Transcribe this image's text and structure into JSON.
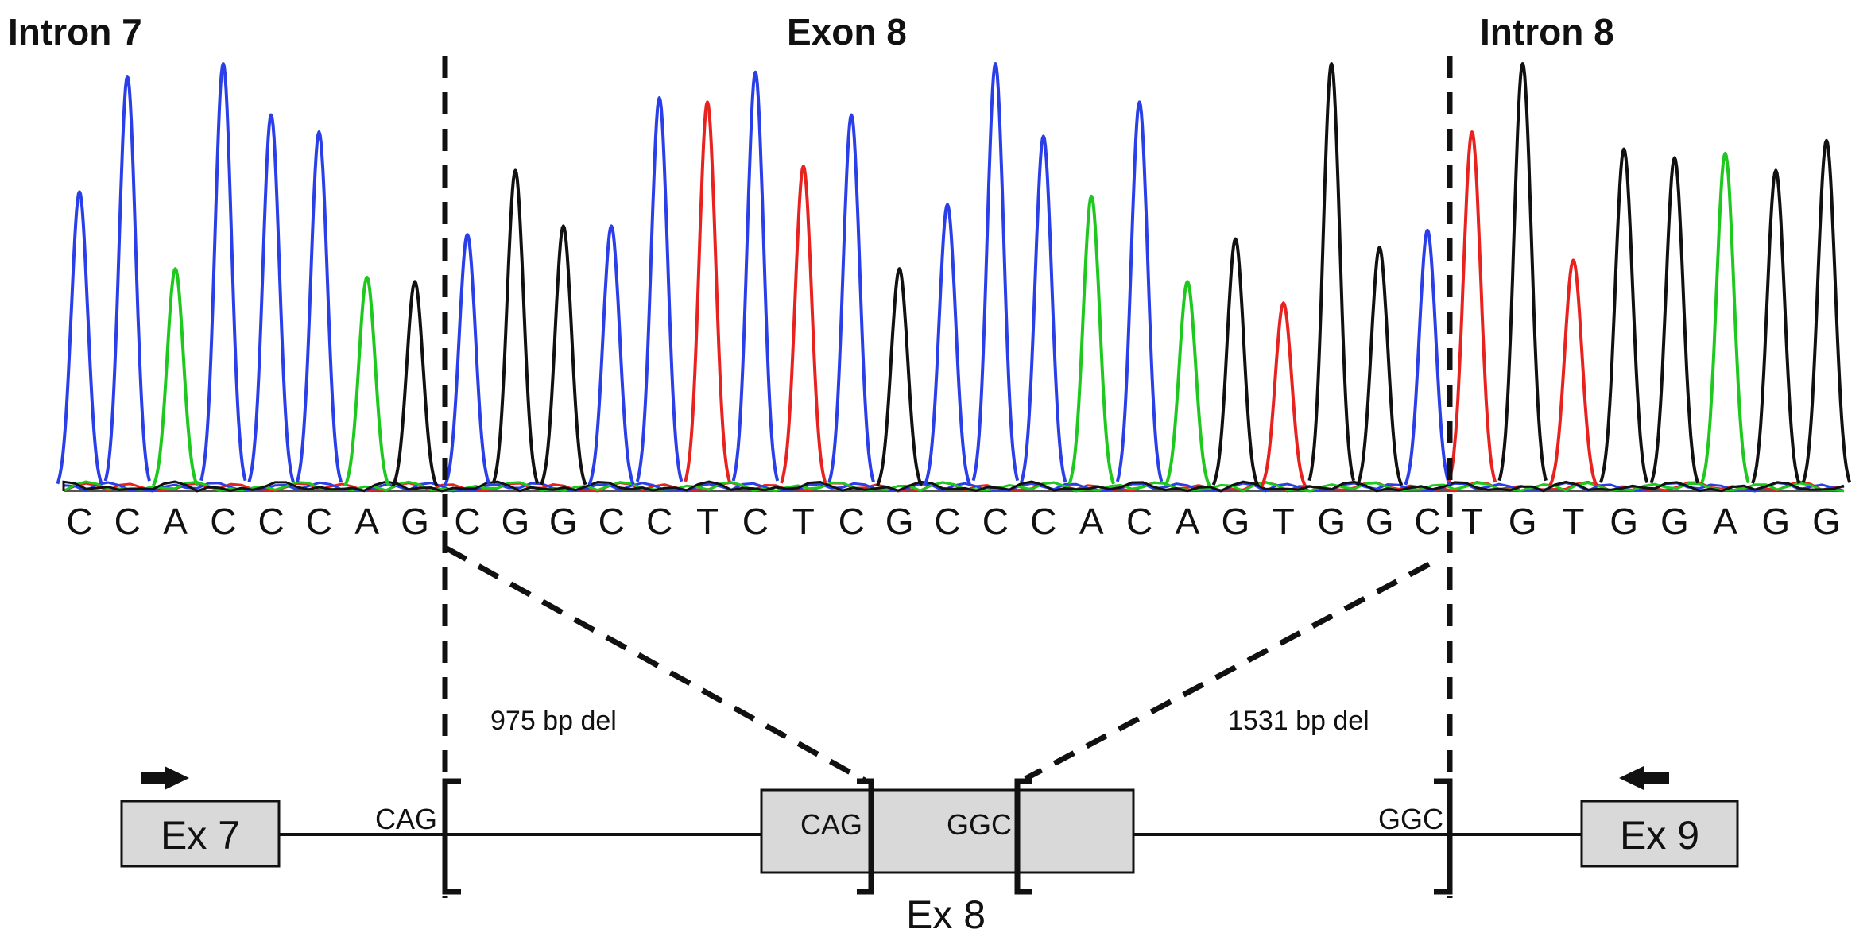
{
  "regions": {
    "intron7": "Intron 7",
    "exon8": "Exon 8",
    "intron8": "Intron 8"
  },
  "colors": {
    "A": "#1ec81e",
    "C": "#2a3fe8",
    "G": "#111111",
    "T": "#e8221e",
    "exon_fill": "#d9d9d9",
    "line": "#111111"
  },
  "sequence": [
    {
      "base": "C",
      "height": 0.7
    },
    {
      "base": "C",
      "height": 0.97
    },
    {
      "base": "A",
      "height": 0.52
    },
    {
      "base": "C",
      "height": 1.0
    },
    {
      "base": "C",
      "height": 0.88
    },
    {
      "base": "C",
      "height": 0.84
    },
    {
      "base": "A",
      "height": 0.5
    },
    {
      "base": "G",
      "height": 0.49
    },
    {
      "base": "C",
      "height": 0.6
    },
    {
      "base": "G",
      "height": 0.75
    },
    {
      "base": "G",
      "height": 0.62
    },
    {
      "base": "C",
      "height": 0.62
    },
    {
      "base": "C",
      "height": 0.92
    },
    {
      "base": "T",
      "height": 0.91
    },
    {
      "base": "C",
      "height": 0.98
    },
    {
      "base": "T",
      "height": 0.76
    },
    {
      "base": "C",
      "height": 0.88
    },
    {
      "base": "G",
      "height": 0.52
    },
    {
      "base": "C",
      "height": 0.67
    },
    {
      "base": "C",
      "height": 1.0
    },
    {
      "base": "C",
      "height": 0.83
    },
    {
      "base": "A",
      "height": 0.69
    },
    {
      "base": "C",
      "height": 0.91
    },
    {
      "base": "A",
      "height": 0.49
    },
    {
      "base": "G",
      "height": 0.59
    },
    {
      "base": "T",
      "height": 0.44
    },
    {
      "base": "G",
      "height": 1.0
    },
    {
      "base": "G",
      "height": 0.57
    },
    {
      "base": "C",
      "height": 0.61
    },
    {
      "base": "T",
      "height": 0.84
    },
    {
      "base": "G",
      "height": 1.0
    },
    {
      "base": "T",
      "height": 0.54
    },
    {
      "base": "G",
      "height": 0.8
    },
    {
      "base": "G",
      "height": 0.78
    },
    {
      "base": "A",
      "height": 0.79
    },
    {
      "base": "G",
      "height": 0.75
    },
    {
      "base": "G",
      "height": 0.82
    }
  ],
  "deletions": {
    "left": "975 bp del",
    "right": "1531 bp del"
  },
  "gene_map": {
    "ex7": "Ex 7",
    "ex8": "Ex 8",
    "ex9": "Ex 9",
    "cag_intron": "CAG",
    "cag_exon": "CAG",
    "ggc_exon": "GGC",
    "ggc_intron": "GGC"
  }
}
